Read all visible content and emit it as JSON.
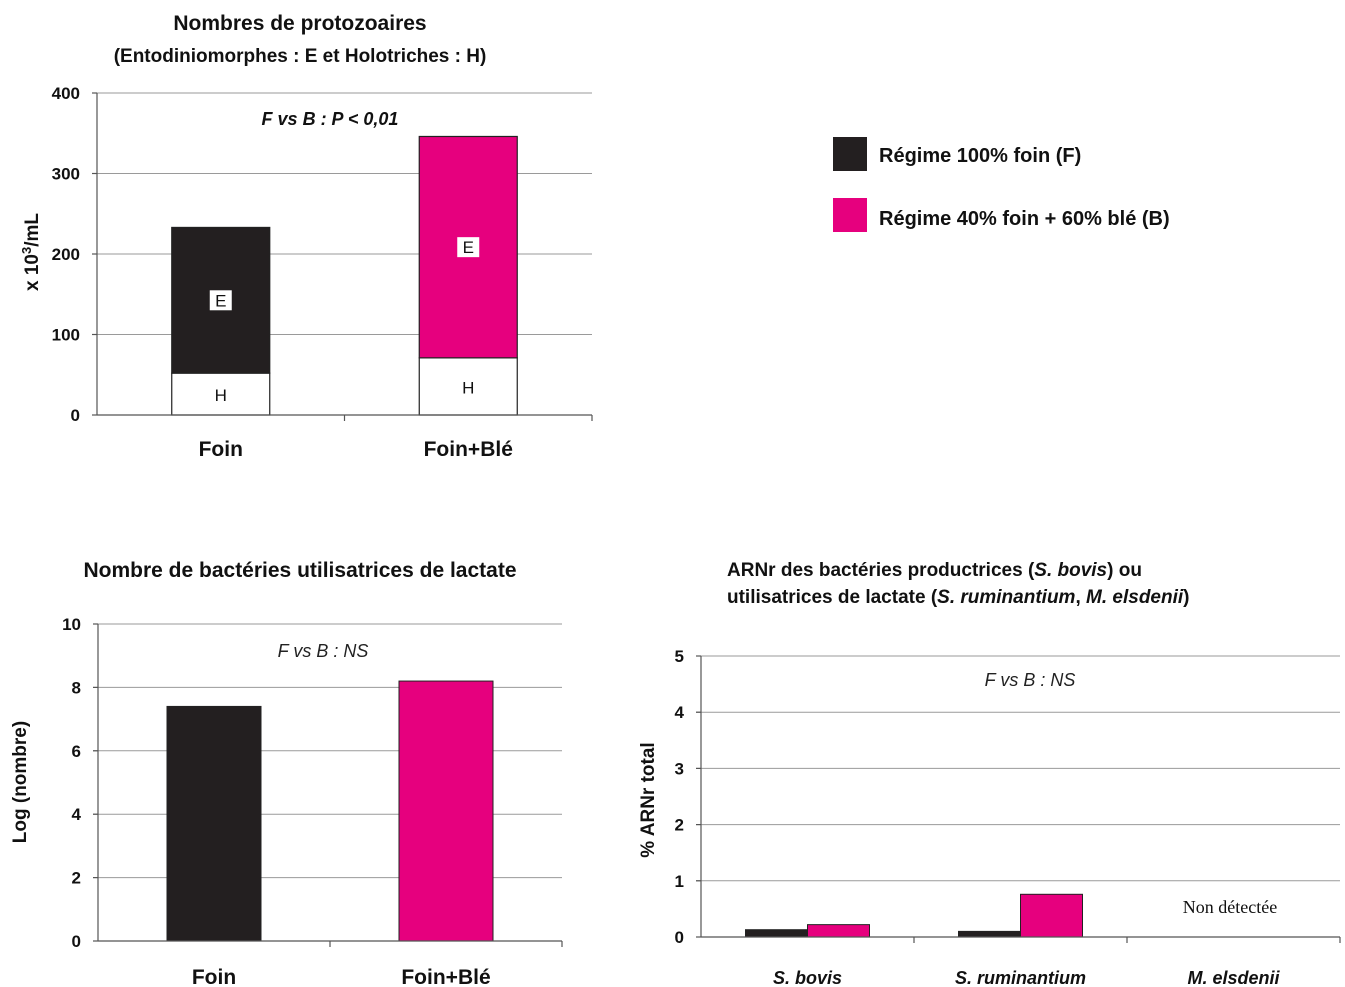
{
  "colors": {
    "F": "#231f20",
    "B": "#e6007e",
    "H": "#ffffff"
  },
  "legend": {
    "items": [
      {
        "key": "F",
        "label": "Régime 100% foin (F)"
      },
      {
        "key": "B",
        "label": "Régime 40% foin + 60% blé (B)"
      }
    ]
  },
  "chart_data": [
    {
      "id": "protozoa",
      "type": "bar",
      "stacked": true,
      "title": "Nombres de protozoaires",
      "subtitle": "(Entodiniomorphes : E et Holotriches : H)",
      "ylabel": "x 10³/mL",
      "ylim": [
        0,
        400
      ],
      "yticks": [
        0,
        100,
        200,
        300,
        400
      ],
      "grid": true,
      "annotation": "F vs B : P < 0,01",
      "categories": [
        "Foin",
        "Foin+Blé"
      ],
      "series": [
        {
          "name": "H",
          "values": [
            52,
            71
          ]
        },
        {
          "name": "E",
          "values": [
            181,
            275
          ]
        }
      ]
    },
    {
      "id": "lactate",
      "type": "bar",
      "title": "Nombre de bactéries utilisatrices de lactate",
      "ylabel": "Log (nombre)",
      "ylim": [
        0,
        10
      ],
      "yticks": [
        0,
        2,
        4,
        6,
        8,
        10
      ],
      "grid": true,
      "annotation": "F vs B : NS",
      "categories": [
        "Foin",
        "Foin+Blé"
      ],
      "values": [
        7.4,
        8.2
      ]
    },
    {
      "id": "arnr",
      "type": "bar",
      "title_line1": "ARNr des bactéries productrices (S. bovis) ou",
      "title_line2": "utilisatrices de lactate (S. ruminantium, M. elsdenii)",
      "ylabel": "% ARNr total",
      "ylim": [
        0,
        5
      ],
      "yticks": [
        0,
        1,
        2,
        3,
        4,
        5
      ],
      "grid": true,
      "annotation": "F vs B : NS",
      "note": "Non détectée",
      "categories": [
        "S. bovis",
        "S. ruminantium",
        "M. elsdenii"
      ],
      "series": [
        {
          "key": "F",
          "values": [
            0.13,
            0.1,
            null
          ]
        },
        {
          "key": "B",
          "values": [
            0.22,
            0.76,
            null
          ]
        }
      ]
    }
  ]
}
